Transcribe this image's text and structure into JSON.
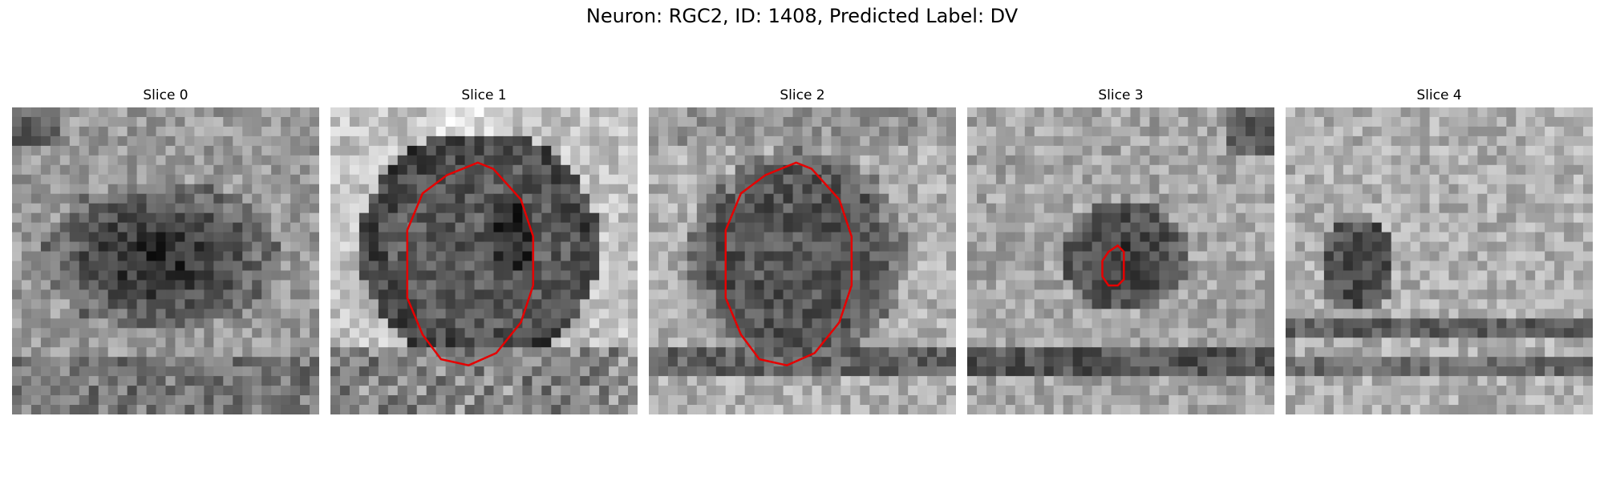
{
  "figure": {
    "title": "Neuron: RGC2, ID: 1408, Predicted Label: DV"
  },
  "panels": [
    {
      "title": "Slice 0",
      "pattern": "dark-ellipse",
      "contour": "none"
    },
    {
      "title": "Slice 1",
      "pattern": "dark-circle-bright-ring",
      "contour": "large-octagon"
    },
    {
      "title": "Slice 2",
      "pattern": "dark-circle",
      "contour": "large-octagon"
    },
    {
      "title": "Slice 3",
      "pattern": "dark-blob",
      "contour": "small-capsule"
    },
    {
      "title": "Slice 4",
      "pattern": "noise-with-bands",
      "contour": "none"
    }
  ],
  "colors": {
    "contour": "#e60000",
    "background": "#ffffff"
  }
}
